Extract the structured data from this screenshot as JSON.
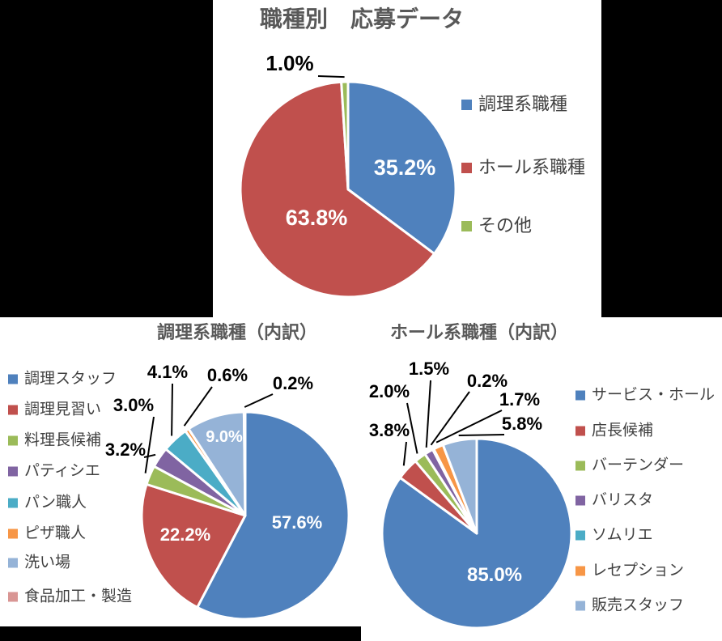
{
  "page": {
    "background_color": "#ffffff",
    "mask_color": "#000000"
  },
  "chart_data": [
    {
      "type": "pie",
      "title": "職種別　応募データ",
      "legend_position": "right",
      "label_format": "percent_1_decimal",
      "slices": [
        {
          "label": "調理系職種",
          "value": 35.2,
          "color": "#4F81BD"
        },
        {
          "label": "ホール系職種",
          "value": 63.8,
          "color": "#C0504D"
        },
        {
          "label": "その他",
          "value": 1.0,
          "color": "#9BBB59"
        }
      ]
    },
    {
      "type": "pie",
      "title": "調理系職種（内訳）",
      "legend_position": "left",
      "label_format": "percent_1_decimal",
      "slices": [
        {
          "label": "調理スタッフ",
          "value": 57.6,
          "color": "#4F81BD"
        },
        {
          "label": "調理見習い",
          "value": 22.2,
          "color": "#C0504D"
        },
        {
          "label": "料理長候補",
          "value": 3.0,
          "color": "#9BBB59"
        },
        {
          "label": "パティシエ",
          "value": 3.2,
          "color": "#8064A2"
        },
        {
          "label": "パン職人",
          "value": 4.1,
          "color": "#4BACC6"
        },
        {
          "label": "ピザ職人",
          "value": 0.6,
          "color": "#F79646"
        },
        {
          "label": "洗い場",
          "value": 9.0,
          "color": "#95B3D7"
        },
        {
          "label": "食品加工・製造",
          "value": 0.2,
          "color": "#D99694"
        }
      ]
    },
    {
      "type": "pie",
      "title": "ホール系職種（内訳）",
      "legend_position": "right",
      "label_format": "percent_1_decimal",
      "slices": [
        {
          "label": "サービス・ホール",
          "value": 85.0,
          "color": "#4F81BD"
        },
        {
          "label": "店長候補",
          "value": 3.8,
          "color": "#C0504D"
        },
        {
          "label": "バーテンダー",
          "value": 2.0,
          "color": "#9BBB59"
        },
        {
          "label": "バリスタ",
          "value": 1.5,
          "color": "#8064A2"
        },
        {
          "label": "ソムリエ",
          "value": 0.2,
          "color": "#4BACC6"
        },
        {
          "label": "レセプション",
          "value": 1.7,
          "color": "#F79646"
        },
        {
          "label": "販売スタッフ",
          "value": 5.8,
          "color": "#95B3D7"
        }
      ]
    }
  ]
}
